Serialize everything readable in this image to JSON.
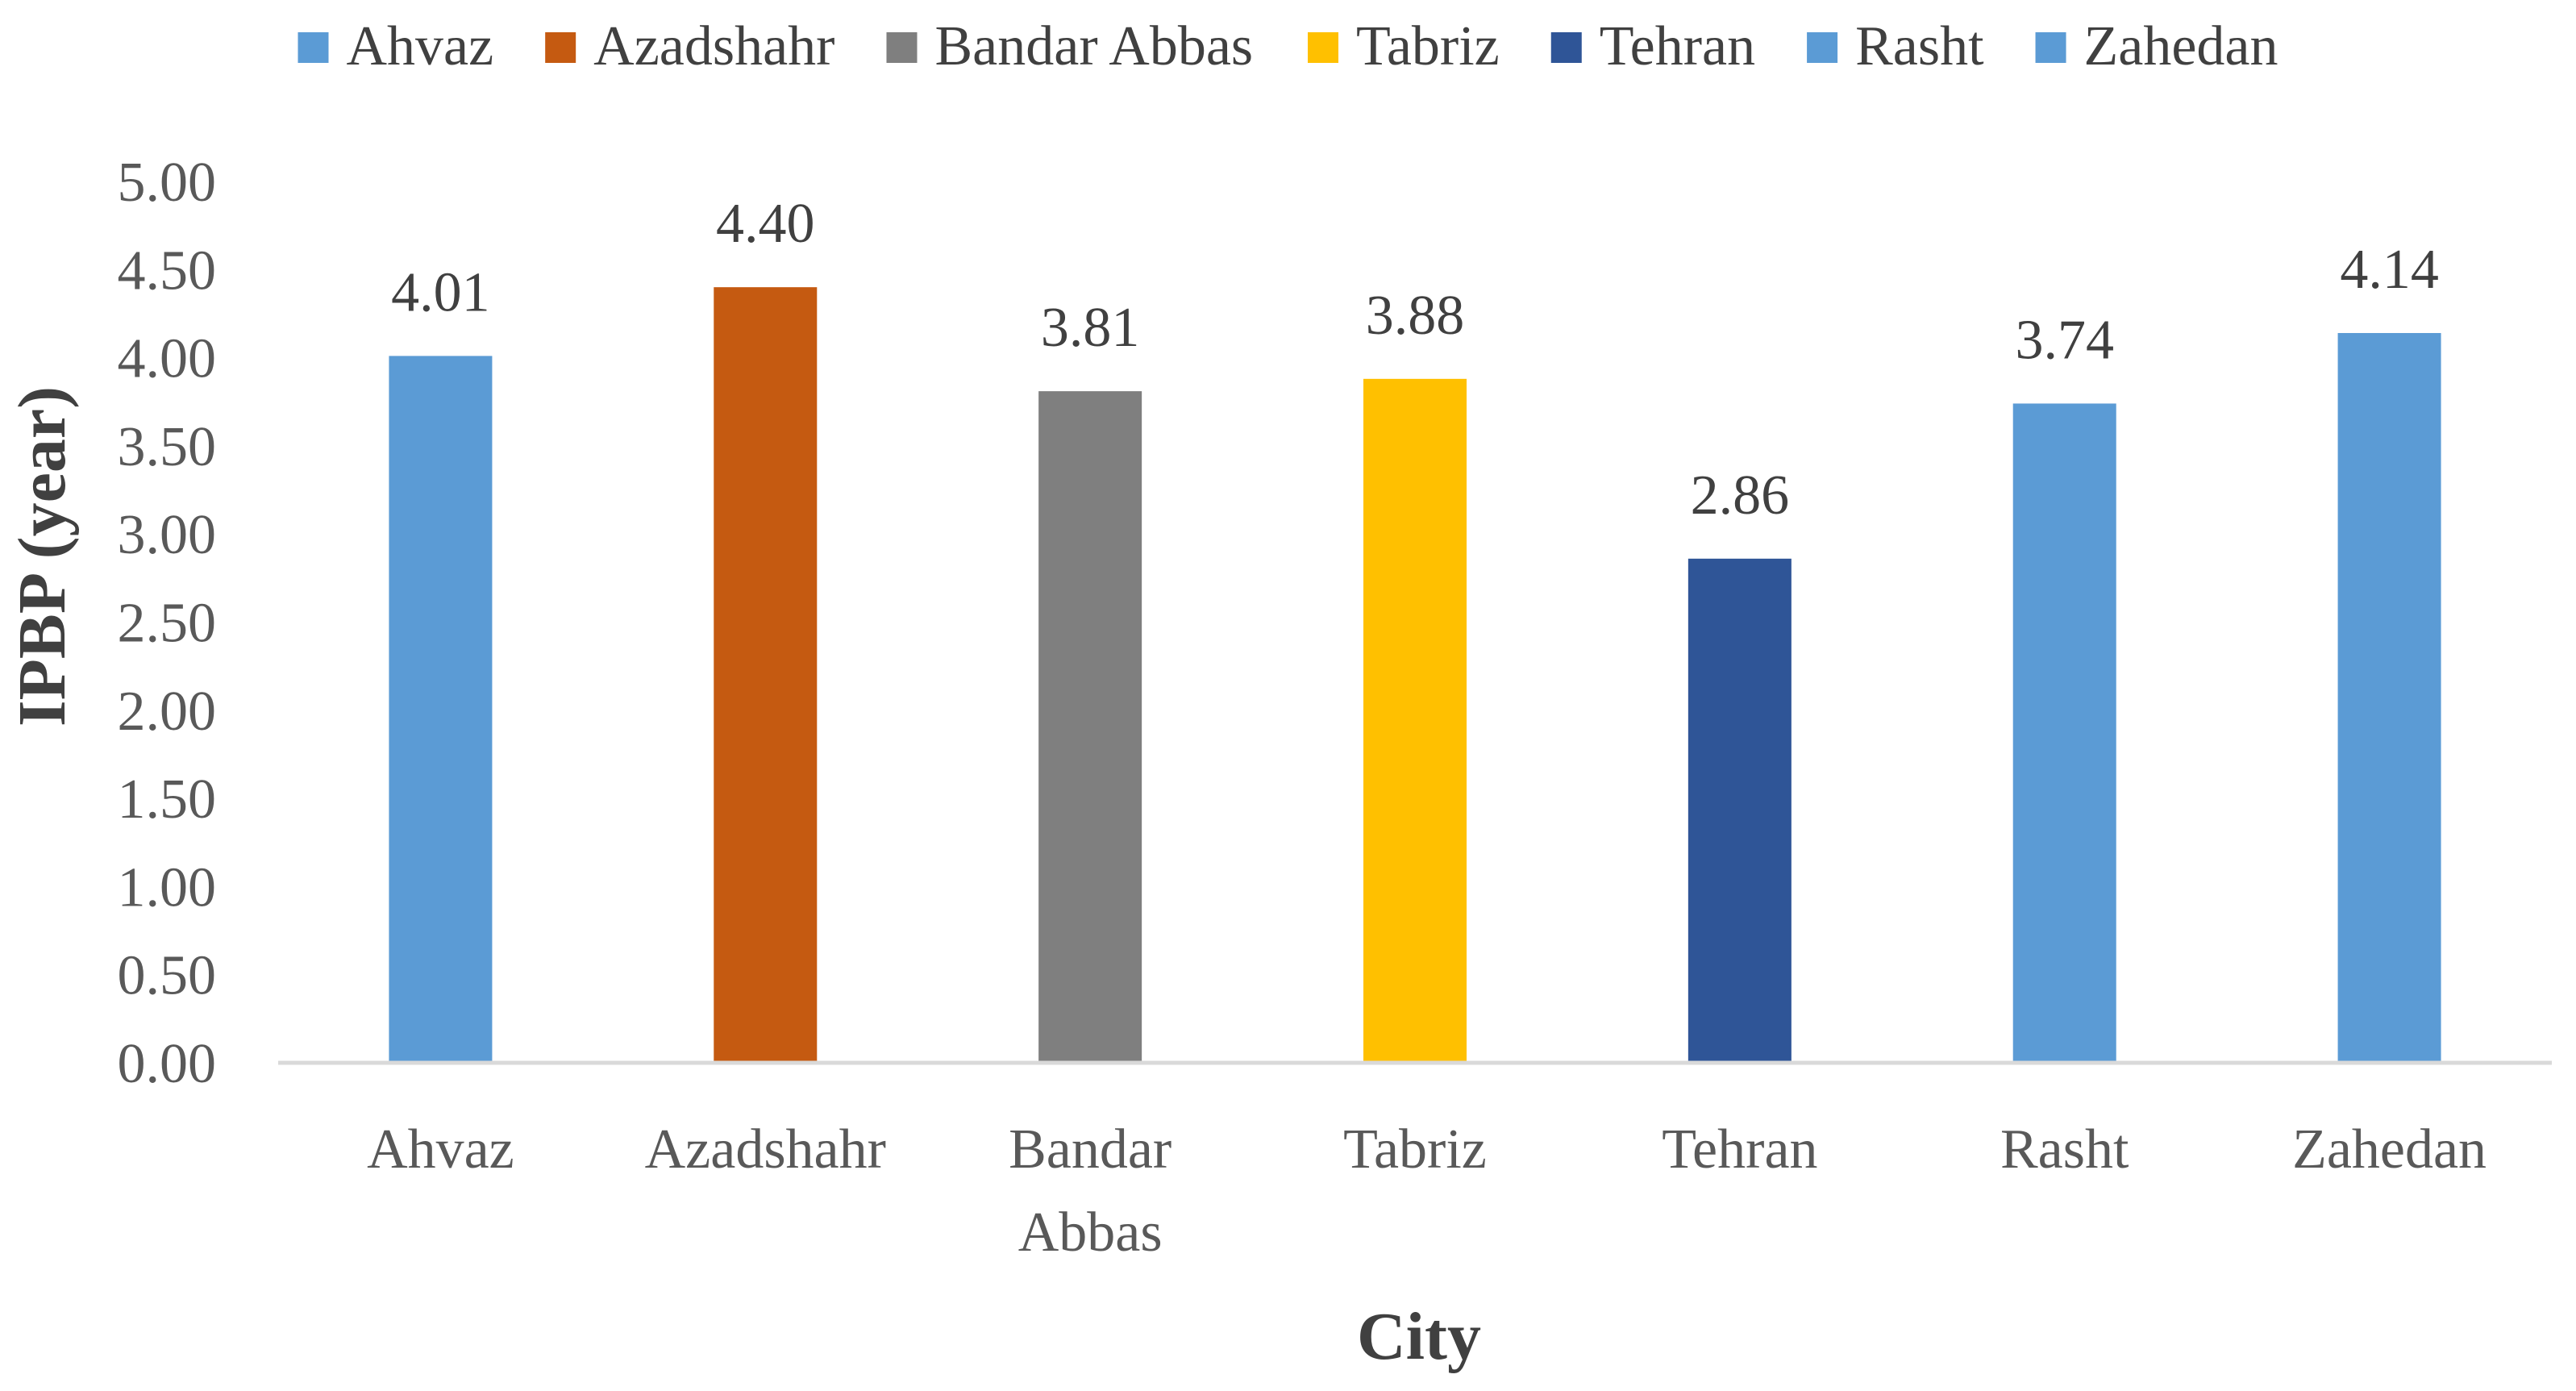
{
  "chart_data": {
    "type": "bar",
    "categories": [
      "Ahvaz",
      "Azadshahr",
      "Bandar Abbas",
      "Tabriz",
      "Tehran",
      "Rasht",
      "Zahedan"
    ],
    "category_labels": [
      [
        "Ahvaz"
      ],
      [
        "Azadshahr"
      ],
      [
        "Bandar",
        "Abbas"
      ],
      [
        "Tabriz"
      ],
      [
        "Tehran"
      ],
      [
        "Rasht"
      ],
      [
        "Zahedan"
      ]
    ],
    "values": [
      4.01,
      4.4,
      3.81,
      3.88,
      2.86,
      3.74,
      4.14
    ],
    "data_labels": [
      "4.01",
      "4.40",
      "3.81",
      "3.88",
      "2.86",
      "3.74",
      "4.14"
    ],
    "colors": [
      "#5B9BD5",
      "#C55A11",
      "#7F7F7F",
      "#FFC000",
      "#2F5597",
      "#5B9BD5",
      "#5B9BD5"
    ],
    "legend": [
      "Ahvaz",
      "Azadshahr",
      "Bandar Abbas",
      "Tabriz",
      "Tehran",
      "Rasht",
      "Zahedan"
    ],
    "legend_position": "top",
    "xlabel": "City",
    "ylabel": "IPBP (year)",
    "ylim": [
      0,
      5
    ],
    "yticks": [
      "0.00",
      "0.50",
      "1.00",
      "1.50",
      "2.00",
      "2.50",
      "3.00",
      "3.50",
      "4.00",
      "4.50",
      "5.00"
    ],
    "grid": false
  }
}
